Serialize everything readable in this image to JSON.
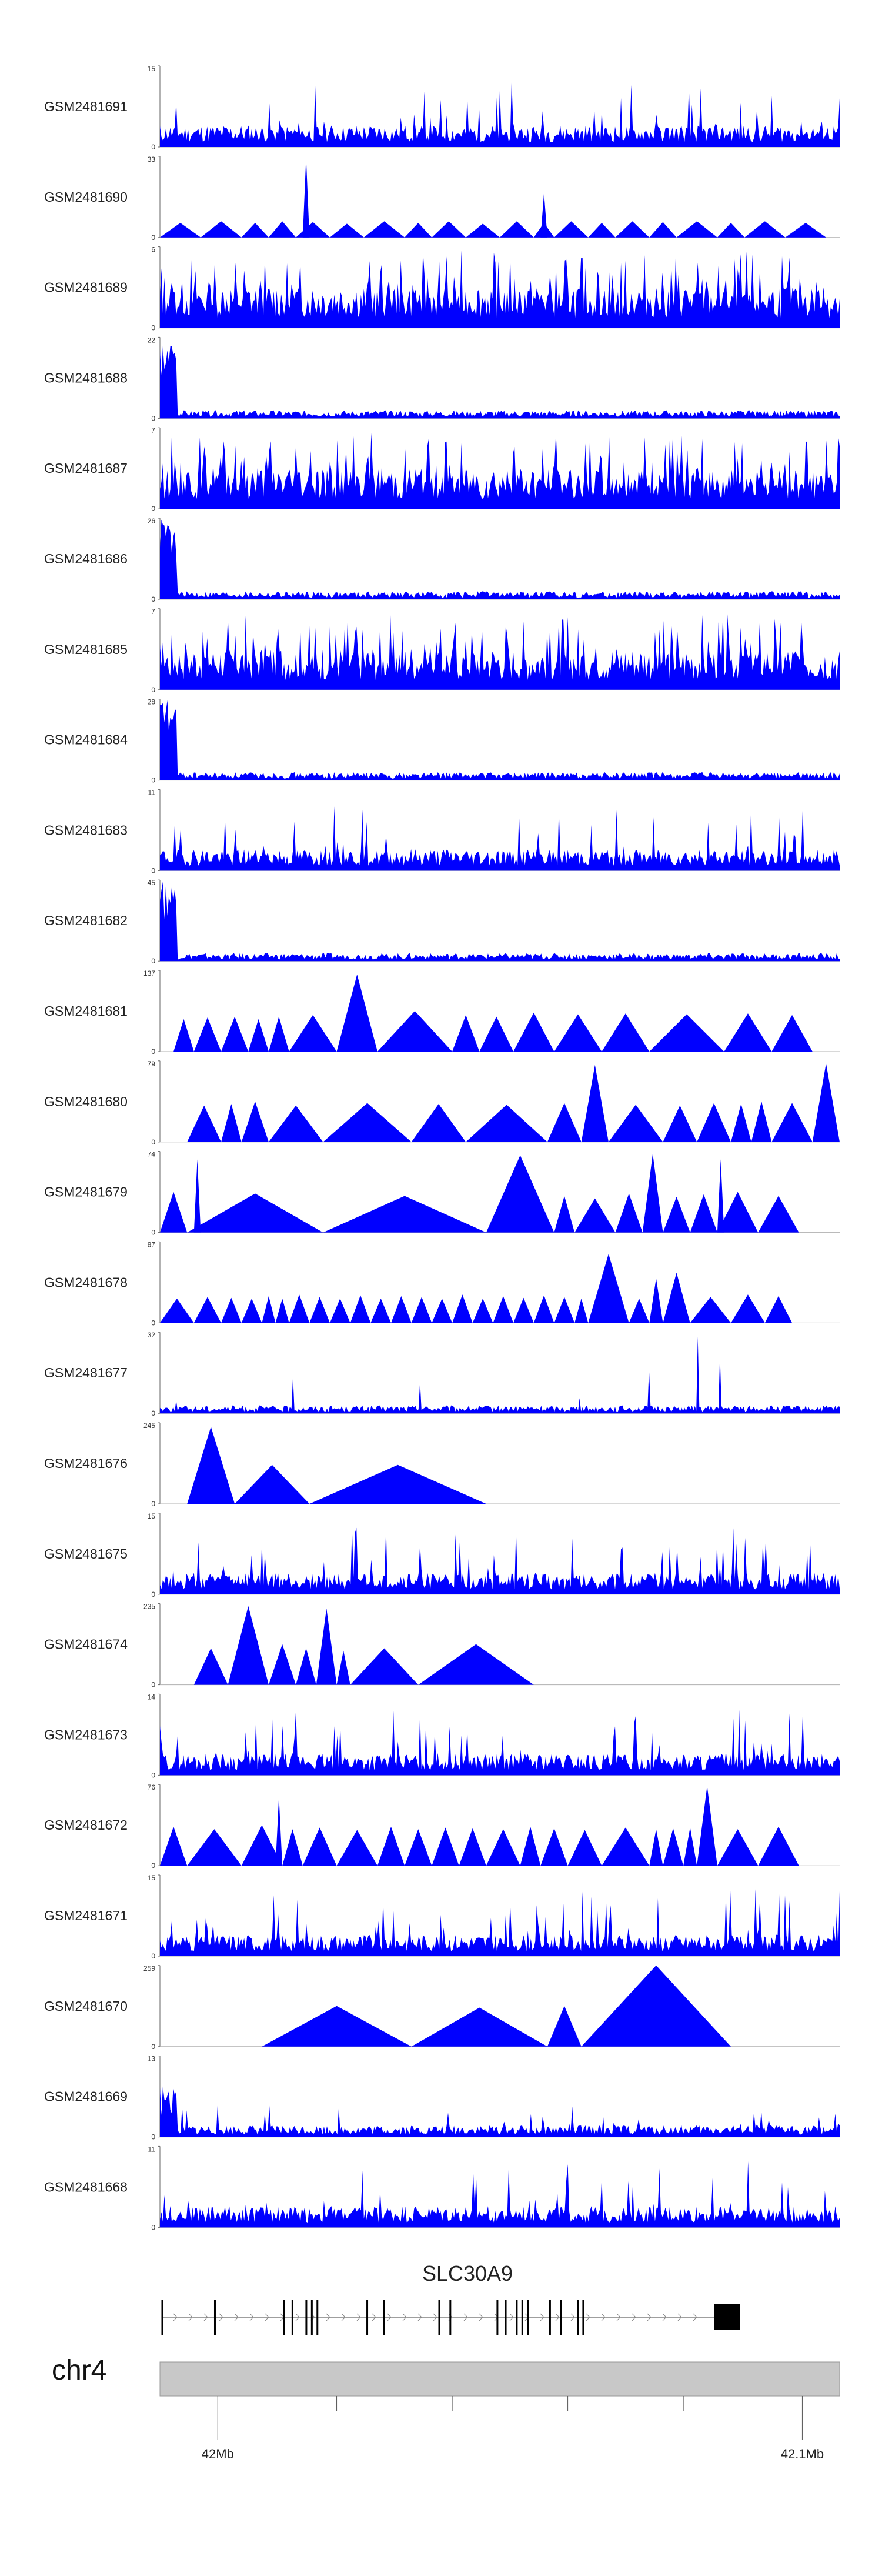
{
  "chart_data": {
    "type": "area",
    "title": "",
    "region": {
      "chromosome": "chr4",
      "gene": "SLC30A9",
      "start_label": "42Mb",
      "end_label": "42.1Mb"
    },
    "color": "#0000ff",
    "tracks": [
      {
        "name": "GSM2481691",
        "ymax": 15,
        "ymin": 0,
        "pattern": "dense",
        "seed": 11
      },
      {
        "name": "GSM2481690",
        "ymax": 33,
        "ymin": 0,
        "pattern": "sparse",
        "seed": 12,
        "tri": [
          [
            0.0,
            0.06,
            0.18
          ],
          [
            0.06,
            0.12,
            0.2
          ],
          [
            0.12,
            0.16,
            0.18
          ],
          [
            0.16,
            0.2,
            0.2
          ],
          [
            0.2,
            0.25,
            0.19
          ],
          [
            0.21,
            0.22,
            0.98
          ],
          [
            0.25,
            0.3,
            0.17
          ],
          [
            0.3,
            0.36,
            0.2
          ],
          [
            0.36,
            0.4,
            0.18
          ],
          [
            0.4,
            0.45,
            0.2
          ],
          [
            0.45,
            0.5,
            0.17
          ],
          [
            0.5,
            0.55,
            0.2
          ],
          [
            0.55,
            0.58,
            0.18
          ],
          [
            0.56,
            0.57,
            0.55
          ],
          [
            0.58,
            0.63,
            0.2
          ],
          [
            0.63,
            0.67,
            0.18
          ],
          [
            0.67,
            0.72,
            0.2
          ],
          [
            0.72,
            0.76,
            0.19
          ],
          [
            0.76,
            0.82,
            0.2
          ],
          [
            0.82,
            0.86,
            0.18
          ],
          [
            0.86,
            0.92,
            0.2
          ],
          [
            0.92,
            0.98,
            0.18
          ]
        ]
      },
      {
        "name": "GSM2481689",
        "ymax": 6,
        "ymin": 0,
        "pattern": "dense-high",
        "seed": 13
      },
      {
        "name": "GSM2481688",
        "ymax": 22,
        "ymin": 0,
        "pattern": "spike-start",
        "seed": 14
      },
      {
        "name": "GSM2481687",
        "ymax": 7,
        "ymin": 0,
        "pattern": "dense-high",
        "seed": 15
      },
      {
        "name": "GSM2481686",
        "ymax": 26,
        "ymin": 0,
        "pattern": "spike-start",
        "seed": 16
      },
      {
        "name": "GSM2481685",
        "ymax": 7,
        "ymin": 0,
        "pattern": "dense-high",
        "seed": 17
      },
      {
        "name": "GSM2481684",
        "ymax": 28,
        "ymin": 0,
        "pattern": "spike-start",
        "seed": 18
      },
      {
        "name": "GSM2481683",
        "ymax": 11,
        "ymin": 0,
        "pattern": "dense",
        "seed": 19
      },
      {
        "name": "GSM2481682",
        "ymax": 45,
        "ymin": 0,
        "pattern": "spike-start",
        "seed": 20
      },
      {
        "name": "GSM2481681",
        "ymax": 137,
        "ymin": 0,
        "pattern": "sparse",
        "seed": 21,
        "tri": [
          [
            0.02,
            0.05,
            0.4
          ],
          [
            0.05,
            0.09,
            0.42
          ],
          [
            0.09,
            0.13,
            0.43
          ],
          [
            0.13,
            0.16,
            0.4
          ],
          [
            0.16,
            0.19,
            0.43
          ],
          [
            0.19,
            0.26,
            0.45
          ],
          [
            0.26,
            0.32,
            0.95
          ],
          [
            0.32,
            0.43,
            0.5
          ],
          [
            0.43,
            0.47,
            0.45
          ],
          [
            0.47,
            0.52,
            0.43
          ],
          [
            0.52,
            0.58,
            0.48
          ],
          [
            0.58,
            0.65,
            0.46
          ],
          [
            0.65,
            0.72,
            0.47
          ],
          [
            0.72,
            0.83,
            0.46
          ],
          [
            0.83,
            0.9,
            0.47
          ],
          [
            0.9,
            0.96,
            0.45
          ]
        ]
      },
      {
        "name": "GSM2481680",
        "ymax": 79,
        "ymin": 0,
        "pattern": "sparse",
        "seed": 22,
        "tri": [
          [
            0.04,
            0.09,
            0.45
          ],
          [
            0.09,
            0.12,
            0.47
          ],
          [
            0.12,
            0.16,
            0.5
          ],
          [
            0.16,
            0.24,
            0.45
          ],
          [
            0.24,
            0.37,
            0.48
          ],
          [
            0.37,
            0.45,
            0.47
          ],
          [
            0.45,
            0.57,
            0.46
          ],
          [
            0.57,
            0.62,
            0.48
          ],
          [
            0.62,
            0.66,
            0.95
          ],
          [
            0.66,
            0.74,
            0.46
          ],
          [
            0.74,
            0.79,
            0.45
          ],
          [
            0.79,
            0.84,
            0.48
          ],
          [
            0.84,
            0.87,
            0.47
          ],
          [
            0.87,
            0.9,
            0.5
          ],
          [
            0.9,
            0.96,
            0.48
          ],
          [
            0.96,
            1.0,
            0.97
          ]
        ]
      },
      {
        "name": "GSM2481679",
        "ymax": 74,
        "ymin": 0,
        "pattern": "sparse",
        "seed": 23,
        "tri": [
          [
            0.0,
            0.04,
            0.5
          ],
          [
            0.04,
            0.24,
            0.48
          ],
          [
            0.05,
            0.06,
            0.9
          ],
          [
            0.24,
            0.48,
            0.45
          ],
          [
            0.48,
            0.58,
            0.95
          ],
          [
            0.58,
            0.61,
            0.45
          ],
          [
            0.61,
            0.67,
            0.42
          ],
          [
            0.67,
            0.71,
            0.48
          ],
          [
            0.71,
            0.74,
            0.97
          ],
          [
            0.74,
            0.78,
            0.44
          ],
          [
            0.78,
            0.82,
            0.47
          ],
          [
            0.82,
            0.88,
            0.5
          ],
          [
            0.82,
            0.83,
            0.9
          ],
          [
            0.88,
            0.94,
            0.45
          ]
        ]
      },
      {
        "name": "GSM2481678",
        "ymax": 87,
        "ymin": 0,
        "pattern": "sparse",
        "seed": 24,
        "tri": [
          [
            0.0,
            0.05,
            0.3
          ],
          [
            0.05,
            0.09,
            0.32
          ],
          [
            0.09,
            0.12,
            0.31
          ],
          [
            0.12,
            0.15,
            0.3
          ],
          [
            0.15,
            0.17,
            0.33
          ],
          [
            0.17,
            0.19,
            0.3
          ],
          [
            0.19,
            0.22,
            0.35
          ],
          [
            0.22,
            0.25,
            0.32
          ],
          [
            0.25,
            0.28,
            0.3
          ],
          [
            0.28,
            0.31,
            0.34
          ],
          [
            0.31,
            0.34,
            0.3
          ],
          [
            0.34,
            0.37,
            0.33
          ],
          [
            0.37,
            0.4,
            0.32
          ],
          [
            0.4,
            0.43,
            0.3
          ],
          [
            0.43,
            0.46,
            0.35
          ],
          [
            0.46,
            0.49,
            0.3
          ],
          [
            0.49,
            0.52,
            0.33
          ],
          [
            0.52,
            0.55,
            0.31
          ],
          [
            0.55,
            0.58,
            0.34
          ],
          [
            0.58,
            0.61,
            0.32
          ],
          [
            0.61,
            0.63,
            0.3
          ],
          [
            0.63,
            0.69,
            0.85
          ],
          [
            0.69,
            0.72,
            0.3
          ],
          [
            0.72,
            0.74,
            0.55
          ],
          [
            0.74,
            0.78,
            0.62
          ],
          [
            0.78,
            0.84,
            0.32
          ],
          [
            0.84,
            0.89,
            0.35
          ],
          [
            0.89,
            0.93,
            0.33
          ]
        ]
      },
      {
        "name": "GSM2481677",
        "ymax": 32,
        "ymin": 0,
        "pattern": "low-spike",
        "seed": 25
      },
      {
        "name": "GSM2481676",
        "ymax": 245,
        "ymin": 0,
        "pattern": "sparse",
        "seed": 26,
        "tri": [
          [
            0.04,
            0.11,
            0.95
          ],
          [
            0.11,
            0.22,
            0.48
          ],
          [
            0.22,
            0.48,
            0.48
          ]
        ]
      },
      {
        "name": "GSM2481675",
        "ymax": 15,
        "ymin": 0,
        "pattern": "dense",
        "seed": 27
      },
      {
        "name": "GSM2481674",
        "ymax": 235,
        "ymin": 0,
        "pattern": "sparse",
        "seed": 28,
        "tri": [
          [
            0.05,
            0.1,
            0.45
          ],
          [
            0.1,
            0.16,
            0.97
          ],
          [
            0.16,
            0.2,
            0.5
          ],
          [
            0.2,
            0.23,
            0.45
          ],
          [
            0.23,
            0.26,
            0.94
          ],
          [
            0.26,
            0.28,
            0.42
          ],
          [
            0.28,
            0.38,
            0.45
          ],
          [
            0.38,
            0.55,
            0.5
          ]
        ]
      },
      {
        "name": "GSM2481673",
        "ymax": 14,
        "ymin": 0,
        "pattern": "dense",
        "seed": 29
      },
      {
        "name": "GSM2481672",
        "ymax": 76,
        "ymin": 0,
        "pattern": "sparse",
        "seed": 30,
        "tri": [
          [
            0.0,
            0.04,
            0.48
          ],
          [
            0.04,
            0.12,
            0.45
          ],
          [
            0.12,
            0.18,
            0.5
          ],
          [
            0.17,
            0.18,
            0.85
          ],
          [
            0.18,
            0.21,
            0.45
          ],
          [
            0.21,
            0.26,
            0.47
          ],
          [
            0.26,
            0.32,
            0.44
          ],
          [
            0.32,
            0.36,
            0.48
          ],
          [
            0.36,
            0.4,
            0.45
          ],
          [
            0.4,
            0.44,
            0.47
          ],
          [
            0.44,
            0.48,
            0.46
          ],
          [
            0.48,
            0.53,
            0.45
          ],
          [
            0.53,
            0.56,
            0.48
          ],
          [
            0.56,
            0.6,
            0.46
          ],
          [
            0.6,
            0.65,
            0.44
          ],
          [
            0.65,
            0.72,
            0.47
          ],
          [
            0.72,
            0.74,
            0.45
          ],
          [
            0.74,
            0.77,
            0.46
          ],
          [
            0.77,
            0.79,
            0.47
          ],
          [
            0.79,
            0.82,
            0.98
          ],
          [
            0.82,
            0.88,
            0.45
          ],
          [
            0.88,
            0.94,
            0.48
          ]
        ]
      },
      {
        "name": "GSM2481671",
        "ymax": 15,
        "ymin": 0,
        "pattern": "dense",
        "seed": 31
      },
      {
        "name": "GSM2481670",
        "ymax": 259,
        "ymin": 0,
        "pattern": "sparse",
        "seed": 32,
        "tri": [
          [
            0.15,
            0.37,
            0.5
          ],
          [
            0.37,
            0.57,
            0.48
          ],
          [
            0.57,
            0.62,
            0.5
          ],
          [
            0.62,
            0.84,
            1.0
          ]
        ]
      },
      {
        "name": "GSM2481669",
        "ymax": 13,
        "ymin": 0,
        "pattern": "spike-start-low",
        "seed": 33
      },
      {
        "name": "GSM2481668",
        "ymax": 11,
        "ymin": 0,
        "pattern": "dense",
        "seed": 34
      }
    ],
    "gene_model": {
      "name": "SLC30A9",
      "exons": [
        0.0,
        0.095,
        0.22,
        0.235,
        0.26,
        0.27,
        0.28,
        0.37,
        0.4,
        0.5,
        0.52,
        0.605,
        0.62,
        0.64,
        0.65,
        0.66,
        0.7,
        0.72,
        0.75,
        0.76
      ]
    },
    "axis": {
      "ticks": [
        {
          "pos": 0.085,
          "label": "42Mb"
        },
        {
          "pos": 0.945,
          "label": "42.1Mb"
        }
      ],
      "minor_ticks": [
        0.26,
        0.43,
        0.6,
        0.77
      ]
    }
  }
}
